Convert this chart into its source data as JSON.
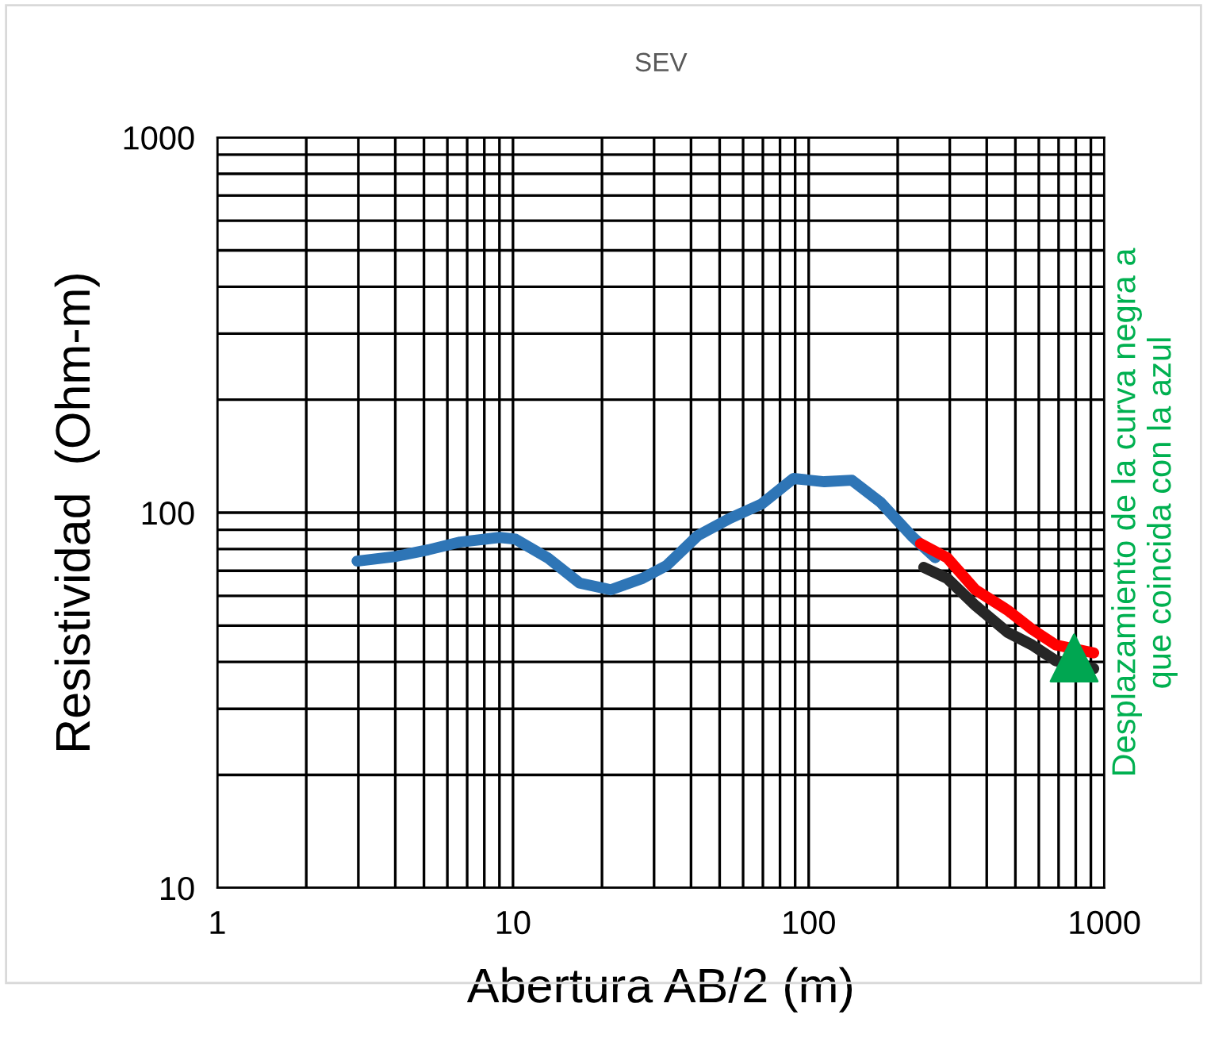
{
  "chart_data": {
    "type": "line",
    "title": "SEV",
    "xlabel": "Abertura AB/2 (m)",
    "ylabel": "Resistividad  (Ohm-m)",
    "log": "xy",
    "grid": true,
    "legend": false,
    "xlim": [
      1,
      1000
    ],
    "xticks": [
      1,
      10,
      100,
      1000
    ],
    "ylim": [
      10,
      1000
    ],
    "yticks": [
      10,
      100,
      1000
    ],
    "annotations": [
      "Desplazamiento de la curva negra a\nque coincida con la azul"
    ],
    "series": [
      {
        "color": "#2e75b6",
        "x": [
          2.97,
          4.04,
          5.17,
          6.63,
          9.0,
          10.2,
          13.1,
          16.8,
          21.4,
          27.4,
          33.0,
          42.2,
          54.2,
          69.4,
          88.8,
          113,
          140,
          175,
          225,
          268
        ],
        "values": [
          74.3,
          76.5,
          79.6,
          83.5,
          85.9,
          85,
          75.8,
          64.9,
          62.3,
          66.8,
          72.2,
          86.9,
          96.6,
          105.5,
          123.3,
          120.9,
          122,
          106.5,
          86,
          75.8
        ]
      },
      {
        "color": "#ff0000",
        "x": [
          239,
          294,
          366,
          470,
          569,
          685,
          920
        ],
        "values": [
          82.7,
          75.8,
          62.3,
          55,
          48.9,
          44.4,
          42.3
        ]
      },
      {
        "color": "#262626",
        "x": [
          245,
          294,
          366,
          470,
          569,
          685,
          920
        ],
        "values": [
          71.5,
          66.8,
          56.6,
          48,
          44.4,
          40.3,
          38.4
        ]
      },
      {
        "type": "scatter",
        "marker": "triangle",
        "color": "#00a651",
        "x": [
          790
        ],
        "values": [
          41
        ]
      }
    ]
  }
}
